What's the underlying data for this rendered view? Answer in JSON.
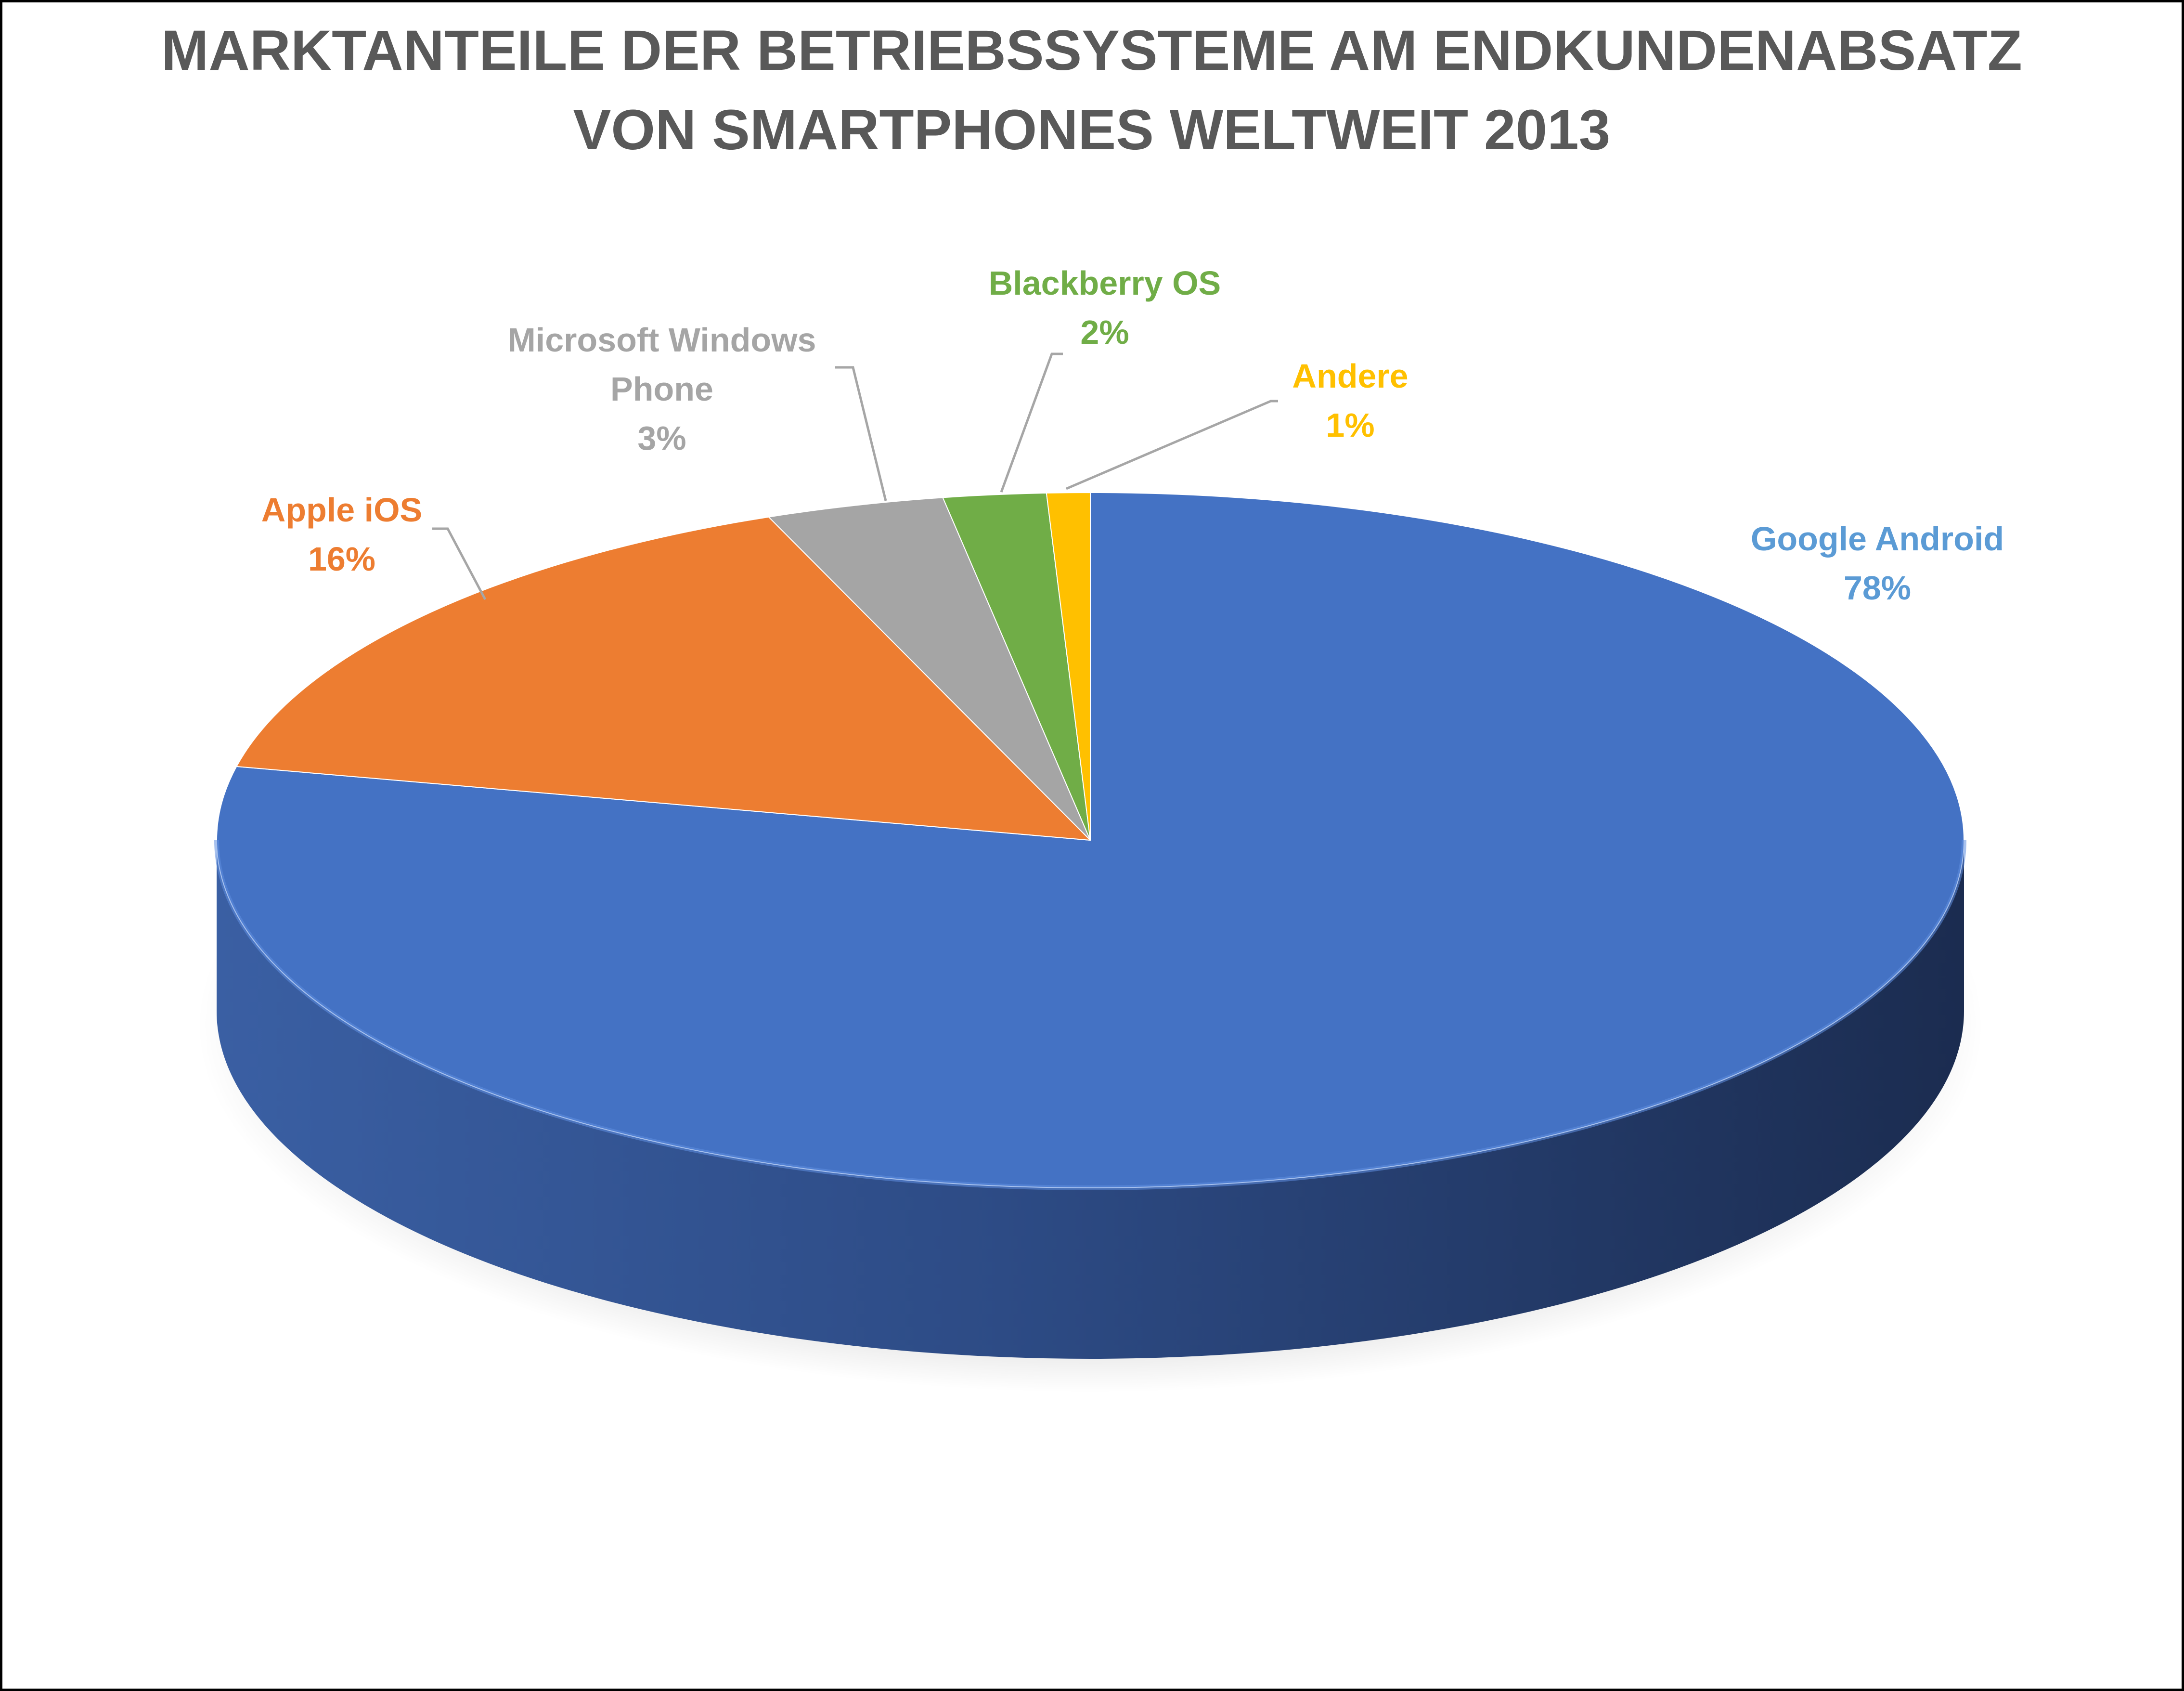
{
  "chart_data": {
    "type": "pie",
    "variant": "3d",
    "title_lines": [
      "MARKTANTEILE DER BETRIEBSSYSTEME AM ENDKUNDENABSATZ",
      "VON SMARTPHONES WELTWEIT 2013"
    ],
    "unit": "%",
    "start_angle_deg": 0,
    "direction": "clockwise",
    "slices": [
      {
        "category_lines": [
          "Google Android"
        ],
        "label_lines": [
          "Google Android",
          "78%"
        ],
        "value": 78.4,
        "color": "#4472C4",
        "label_color": "#5B9BD5"
      },
      {
        "category_lines": [
          "Apple iOS"
        ],
        "label_lines": [
          "Apple iOS",
          "16%"
        ],
        "value": 15.6,
        "color": "#ED7D31",
        "label_color": "#ED7D31"
      },
      {
        "category_lines": [
          "Microsoft Windows",
          "Phone"
        ],
        "label_lines": [
          "Microsoft Windows",
          "Phone",
          "3%"
        ],
        "value": 3.3,
        "color": "#A5A5A5",
        "label_color": "#A5A5A5"
      },
      {
        "category_lines": [
          "Blackberry OS"
        ],
        "label_lines": [
          "Blackberry OS",
          "2%"
        ],
        "value": 1.9,
        "color": "#70AD47",
        "label_color": "#70AD47"
      },
      {
        "category_lines": [
          "Andere"
        ],
        "label_lines": [
          "Andere",
          "1%"
        ],
        "value": 0.8,
        "color": "#FFC000",
        "label_color": "#FFC000"
      }
    ],
    "leader_color": "#A6A6A6",
    "title_color": "#595959",
    "border_color": "#000000"
  }
}
